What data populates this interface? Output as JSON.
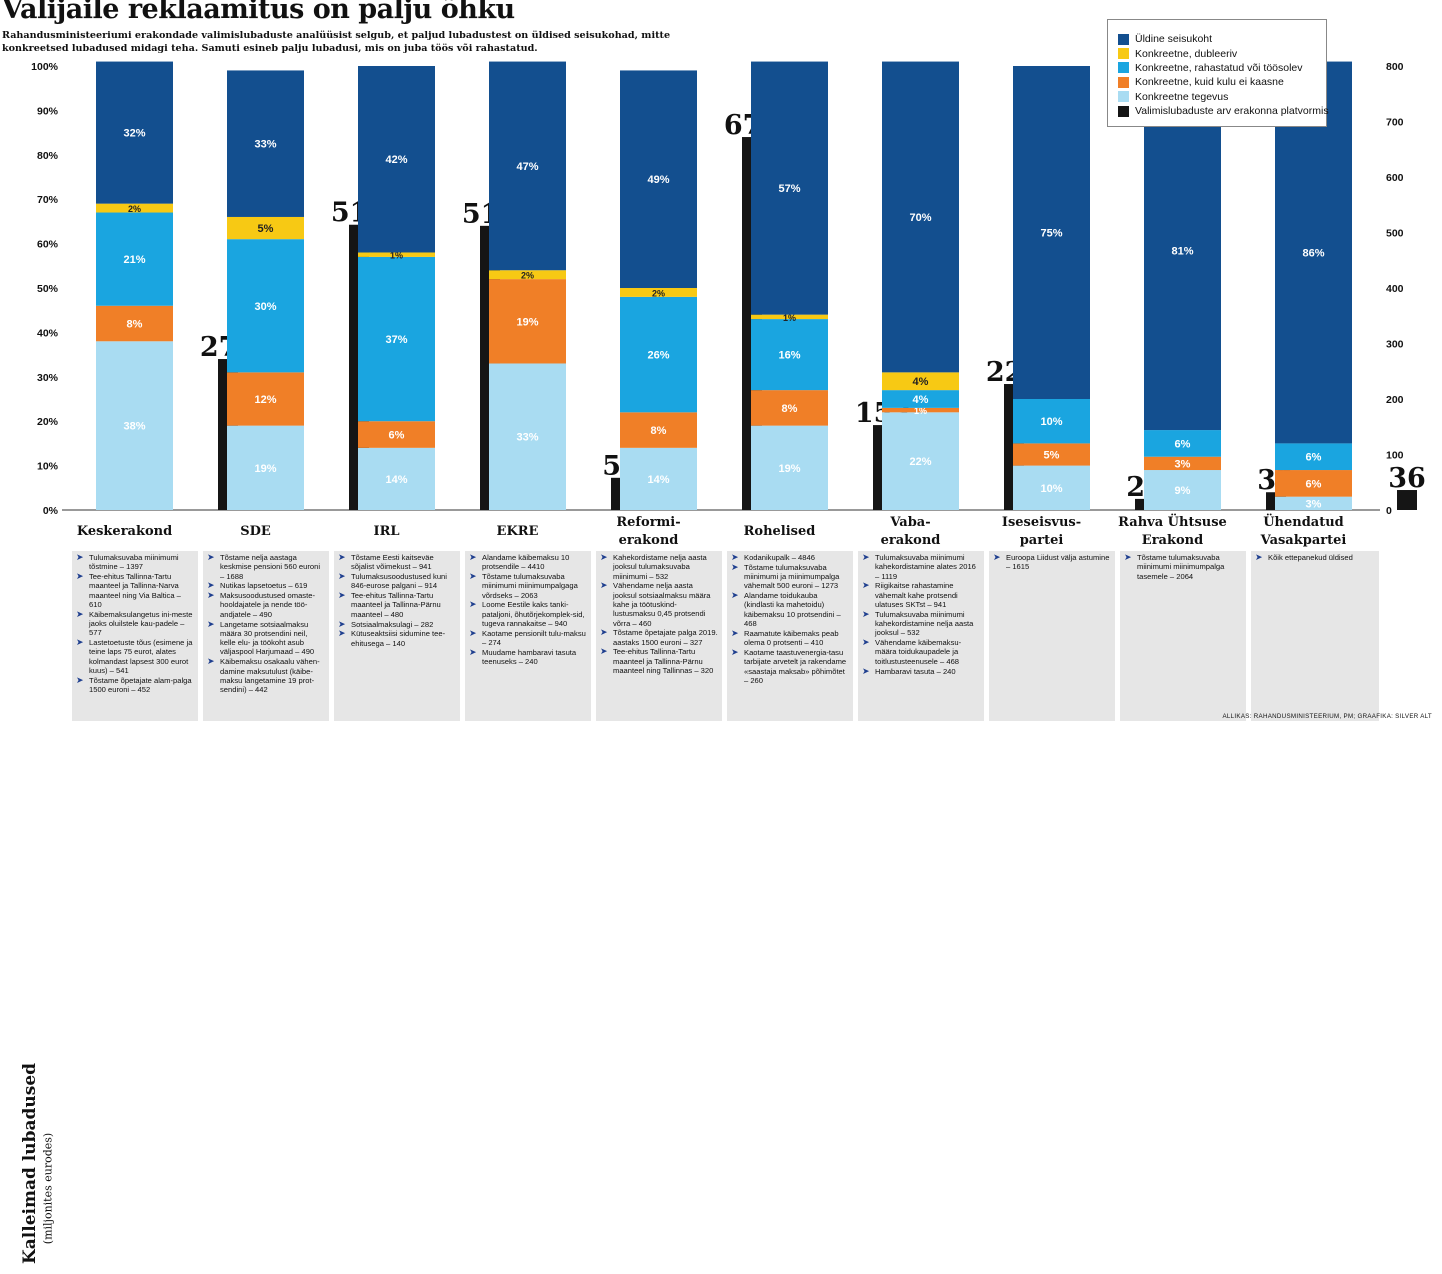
{
  "headline": "Valijaile reklaamitus on palju õhku",
  "subtitle": "Rahandusministeeriumi erakondade valimislubaduste analüüsist selgub, et paljud lubadustest on üldised seisukohad, mitte konkreetsed lubadused midagi teha. Samuti esineb palju lubadusi, mis on juba töös või rahastatud.",
  "side_title": {
    "main": "Kalleimad lubadused",
    "sub": "(miljonites eurodes)"
  },
  "source": "Allikas: rahandusministeerium, PM; graafika: Silver Alt",
  "colors": {
    "general": "#134f8f",
    "duplicate": "#f7c914",
    "funded": "#1aa5e0",
    "cost_unknown": "#f07f27",
    "action": "#a9dcf2",
    "count": "#151515"
  },
  "chart_data": {
    "type": "bar",
    "stacked": true,
    "secondary_series_type": "bar",
    "categories": [
      "Keskerakond",
      "SDE",
      "IRL",
      "EKRE",
      "Reformierakond",
      "Rohelised",
      "Vabaerakond",
      "Iseseisvuspartei",
      "Rahva Ühtsuse Erakond",
      "Ühendatud Vasakpartei"
    ],
    "category_labels": [
      [
        "Keskerakond"
      ],
      [
        "SDE"
      ],
      [
        "IRL"
      ],
      [
        "EKRE"
      ],
      [
        "Reformi-",
        "erakond"
      ],
      [
        "Rohelised"
      ],
      [
        "Vaba-",
        "erakond"
      ],
      [
        "Iseseisvus-",
        "partei"
      ],
      [
        "Rahva Ühtsuse",
        "Erakond"
      ],
      [
        "Ühendatud",
        "Vasakpartei"
      ]
    ],
    "series": [
      {
        "name": "Konkreetne tegevus",
        "key": "action",
        "values": [
          38,
          19,
          14,
          33,
          14,
          19,
          22,
          10,
          9,
          3
        ],
        "labels": [
          "38%",
          "19%",
          "14%",
          "33%",
          "14%",
          "19%",
          "22%",
          "10%",
          "9%",
          "3%"
        ]
      },
      {
        "name": "Konkreetne, kuid kulu ei kaasne",
        "key": "cost_unknown",
        "values": [
          8,
          12,
          6,
          19,
          8,
          8,
          1,
          5,
          3,
          6
        ],
        "labels": [
          "8%",
          "12%",
          "6%",
          "19%",
          "8%",
          "8%",
          "1%",
          "5%",
          "3%",
          "6%"
        ]
      },
      {
        "name": "Konkreetne, rahastatud või töösolev",
        "key": "funded",
        "values": [
          21,
          30,
          37,
          0,
          26,
          16,
          4,
          10,
          6,
          6
        ],
        "labels": [
          "21%",
          "30%",
          "37%",
          "",
          "26%",
          "16%",
          "4%",
          "10%",
          "6%",
          "6%"
        ]
      },
      {
        "name": "Konkreetne, dubleeriv",
        "key": "duplicate",
        "values": [
          2,
          5,
          1,
          2,
          2,
          1,
          4,
          0,
          0,
          0
        ],
        "labels": [
          "2%",
          "5%",
          "1%",
          "2%",
          "2%",
          "1%",
          "4%",
          "",
          "",
          ""
        ]
      },
      {
        "name": "Üldine seisukoht",
        "key": "general",
        "values": [
          32,
          33,
          42,
          47,
          49,
          57,
          70,
          75,
          81,
          86
        ],
        "labels": [
          "32%",
          "33%",
          "42%",
          "47%",
          "49%",
          "57%",
          "70%",
          "75%",
          "81%",
          "86%"
        ]
      }
    ],
    "promise_counts": {
      "name": "Valimislubaduste arv erakonna platvormis",
      "values": [
        272,
        514,
        512,
        58,
        672,
        153,
        227,
        20,
        32,
        36
      ]
    },
    "legend_order": [
      "Üldine seisukoht",
      "Konkreetne, dubleeriv",
      "Konkreetne, rahastatud või töösolev",
      "Konkreetne, kuid kulu ei kaasne",
      "Konkreetne tegevus",
      "Valimislubaduste arv erakonna platvormis"
    ],
    "legend_keys": [
      "general",
      "duplicate",
      "funded",
      "cost_unknown",
      "action",
      "count"
    ],
    "left_axis": {
      "ylim": [
        0,
        100
      ],
      "ticks": [
        "0%",
        "10%",
        "20%",
        "30%",
        "40%",
        "50%",
        "60%",
        "70%",
        "80%",
        "90%",
        "100%"
      ]
    },
    "right_axis": {
      "ylim": [
        0,
        800
      ],
      "ticks": [
        "0",
        "100",
        "200",
        "300",
        "400",
        "500",
        "600",
        "700",
        "800"
      ]
    },
    "legend_position": "top-right",
    "grid": false
  },
  "promises": [
    [
      "Tulumaksuvaba miinimumi tõstmine – 1397",
      "Tee-ehitus Tallinna-Tartu maanteel ja Tallinna-Narva maanteel ning Via Baltica – 610",
      "Käibemaksulangetus ini-meste jaoks oluilstele kau-padele – 577",
      "Lastetoetuste tõus (esimene ja teine laps 75 eurot, alates kolmandast lapsest 300 eurot kuus) – 541",
      "Tõstame õpetajate alam-palga 1500 euroni – 452"
    ],
    [
      "Tõstame nelja aastaga keskmise pensioni 560 euroni – 1688",
      "Nutikas lapsetoetus – 619",
      "Maksusoodustused omaste-hooldajatele ja nende töö-andjatele – 490",
      "Langetame sotsiaalmaksu määra 30 protsendini neil, kelle elu- ja töökoht asub väljaspool Harjumaad – 490",
      "Käibemaksu osakaalu vähen-damine maksutulust (käibe-maksu langetamine 19 prot-sendini) – 442"
    ],
    [
      "Tõstame Eesti kaitseväe sõjalist võimekust – 941",
      "Tulumaksusoodustused kuni 846-eurose palgani – 914",
      "Tee-ehitus Tallinna-Tartu maanteel ja Tallinna-Pärnu maanteel – 480",
      "Sotsiaalmaksulagi – 282",
      "Kütuseaktsiisi sidumine tee-ehitusega – 140"
    ],
    [
      "Alandame käibemaksu 10 protsendile – 4410",
      "Tõstame tulumaksuvaba miinimumi miinimumpalgaga võrdseks – 2063",
      "Loome Eestile kaks tanki-pataljoni, õhutõrjekomplek-sid, tugeva rannakaitse – 940",
      "Kaotame pensionilt tulu-maksu – 274",
      "Muudame hambaravi tasuta teenuseks – 240"
    ],
    [
      "Kahekordistame nelja aasta jooksul tulumaksuvaba miinimumi – 532",
      "Vähendame nelja aasta jooksul sotsiaalmaksu määra kahe ja töötuskind-lustusmaksu 0,45 protsendi võrra – 460",
      "Tõstame õpetajate palga 2019. aastaks 1500 euroni – 327",
      "Tee-ehitus Tallinna-Tartu maanteel ja Tallinna-Pärnu maanteel ning Tallinnas – 320"
    ],
    [
      "Kodanikupalk – 4846",
      "Tõstame tulumaksuvaba miinimumi ja miinimumpalga vähemalt 500 euroni – 1273",
      "Alandame toidukauba (kindlasti ka mahetoidu) käibemaksu 10 protsendini – 468",
      "Raamatute käibemaks peab olema 0 protsenti – 410",
      "Kaotame taastuvenergia-tasu tarbijate arvetelt ja rakendame «saastaja maksab» põhimõtet – 260"
    ],
    [
      "Tulumaksuvaba miinimumi kahekordistamine alates 2016 – 1119",
      "Riigikaitse rahastamine vähemalt kahe protsendi ulatuses SKTst – 941",
      "Tulumaksuvaba miinimumi kahekordistamine nelja aasta jooksul – 532",
      "Vähendame käibemaksu-määra toidukaupadele ja toitlustusteenusele – 468",
      "Hambaravi tasuta – 240"
    ],
    [
      "Euroopa Liidust välja astumine – 1615"
    ],
    [
      "Tõstame tulumaksuvaba miinimumi miinimumpalga tasemele – 2064"
    ],
    [
      "Kõik ettepanekud üldised"
    ]
  ]
}
